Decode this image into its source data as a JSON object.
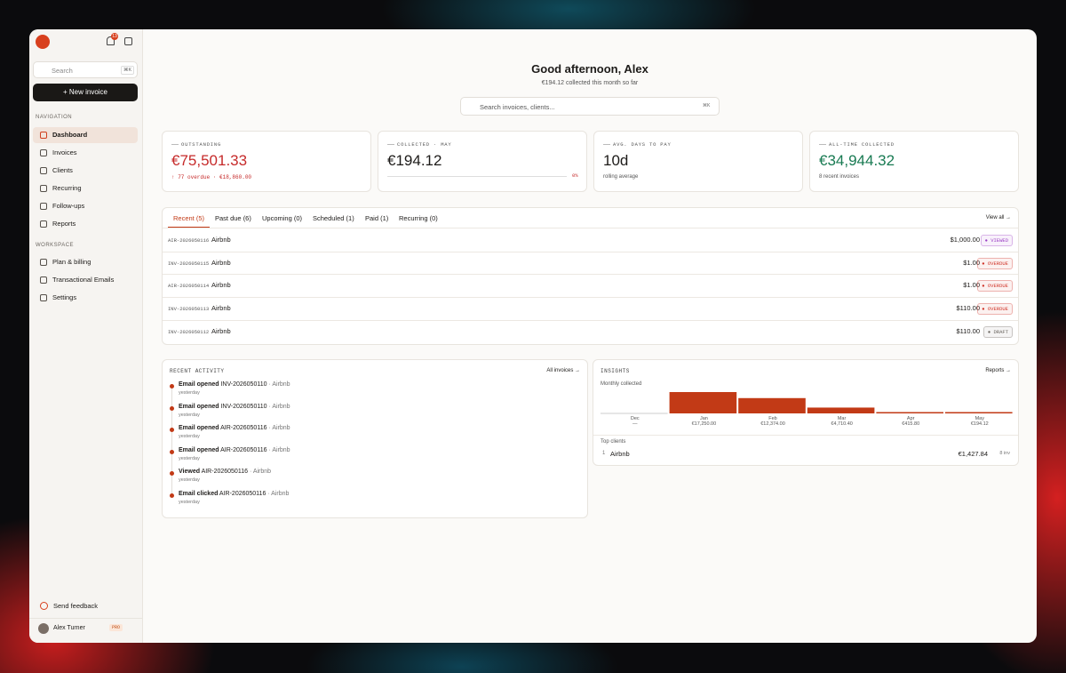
{
  "sidebar": {
    "notifications": "13",
    "search": "Search",
    "search_shortcut": "⌘K",
    "new_invoice": "New invoice",
    "nav_heading": "NAVIGATION",
    "nav": [
      "Dashboard",
      "Invoices",
      "Clients",
      "Recurring",
      "Follow-ups",
      "Reports"
    ],
    "workspace_heading": "WORKSPACE",
    "workspace": [
      "Plan & billing",
      "Transactional Emails",
      "Settings"
    ],
    "feedback": "Send feedback",
    "user": "Alex Turner",
    "plan": "PRO"
  },
  "header": {
    "greeting": "Good afternoon, Alex",
    "subtitle": "€194.12 collected this month so far",
    "search": "Search invoices, clients...",
    "shortcut": "⌘K"
  },
  "stats": [
    {
      "label": "OUTSTANDING",
      "value": "€75,501.33",
      "note": "↑ 77 overdue · €18,860.00",
      "color": "#c62a2a"
    },
    {
      "label": "COLLECTED · MAY",
      "value": "€194.12",
      "progress": "0%",
      "color": "#1d1b19"
    },
    {
      "label": "AVG. DAYS TO PAY",
      "value": "10d",
      "note": "rolling average",
      "color": "#1d1b19"
    },
    {
      "label": "ALL-TIME COLLECTED",
      "value": "€34,944.32",
      "note": "8 recent invoices",
      "color": "#187a52"
    }
  ],
  "tabs": [
    "Recent (5)",
    "Past due (6)",
    "Upcoming (0)",
    "Scheduled (1)",
    "Paid (1)",
    "Recurring (0)"
  ],
  "view_all": "View all →",
  "invoices": [
    {
      "number": "AIR-2026050116",
      "client": "Airbnb",
      "amount": "$1,000.00",
      "status": "● VIEWED",
      "color": "#9b3fc4"
    },
    {
      "number": "INV-2026050115",
      "client": "Airbnb",
      "amount": "$1.00",
      "status": "● OVERDUE",
      "color": "#d0352a"
    },
    {
      "number": "AIR-2026050114",
      "client": "Airbnb",
      "amount": "$1.00",
      "status": "● OVERDUE",
      "color": "#d0352a"
    },
    {
      "number": "INV-2026050113",
      "client": "Airbnb",
      "amount": "$110.00",
      "status": "● OVERDUE",
      "color": "#d0352a"
    },
    {
      "number": "INV-2026050112",
      "client": "Airbnb",
      "amount": "$110.00",
      "status": "● DRAFT",
      "color": "#6b6660"
    }
  ],
  "activity": {
    "title": "RECENT ACTIVITY",
    "link": "All invoices →",
    "items": [
      {
        "event": "Email opened",
        "invoice": "INV-2026050110",
        "client": "· Airbnb",
        "time": "yesterday"
      },
      {
        "event": "Email opened",
        "invoice": "INV-2026050110",
        "client": "· Airbnb",
        "time": "yesterday"
      },
      {
        "event": "Email opened",
        "invoice": "AIR-2026050116",
        "client": "· Airbnb",
        "time": "yesterday"
      },
      {
        "event": "Email opened",
        "invoice": "AIR-2026050116",
        "client": "· Airbnb",
        "time": "yesterday"
      },
      {
        "event": "Viewed",
        "invoice": "AIR-2026050116",
        "client": "· Airbnb",
        "time": "yesterday"
      },
      {
        "event": "Email clicked",
        "invoice": "AIR-2026050116",
        "client": "· Airbnb",
        "time": "yesterday"
      }
    ]
  },
  "insights": {
    "title": "INSIGHTS",
    "link": "Reports →",
    "chart_title": "Monthly collected",
    "color": "#c23a16",
    "months": [
      "Dec",
      "Jan",
      "Feb",
      "Mar",
      "Apr",
      "May"
    ],
    "values": [
      null,
      17250,
      12374,
      4710.4,
      415.8,
      194.12
    ],
    "value_labels": [
      "—",
      "€17,250.00",
      "€12,374.00",
      "€4,710.40",
      "€415.80",
      "€194.12"
    ],
    "top_clients_title": "Top clients",
    "top_clients": [
      {
        "rank": "1",
        "name": "Airbnb",
        "amount": "€1,427.84",
        "count": "8 inv"
      }
    ]
  }
}
